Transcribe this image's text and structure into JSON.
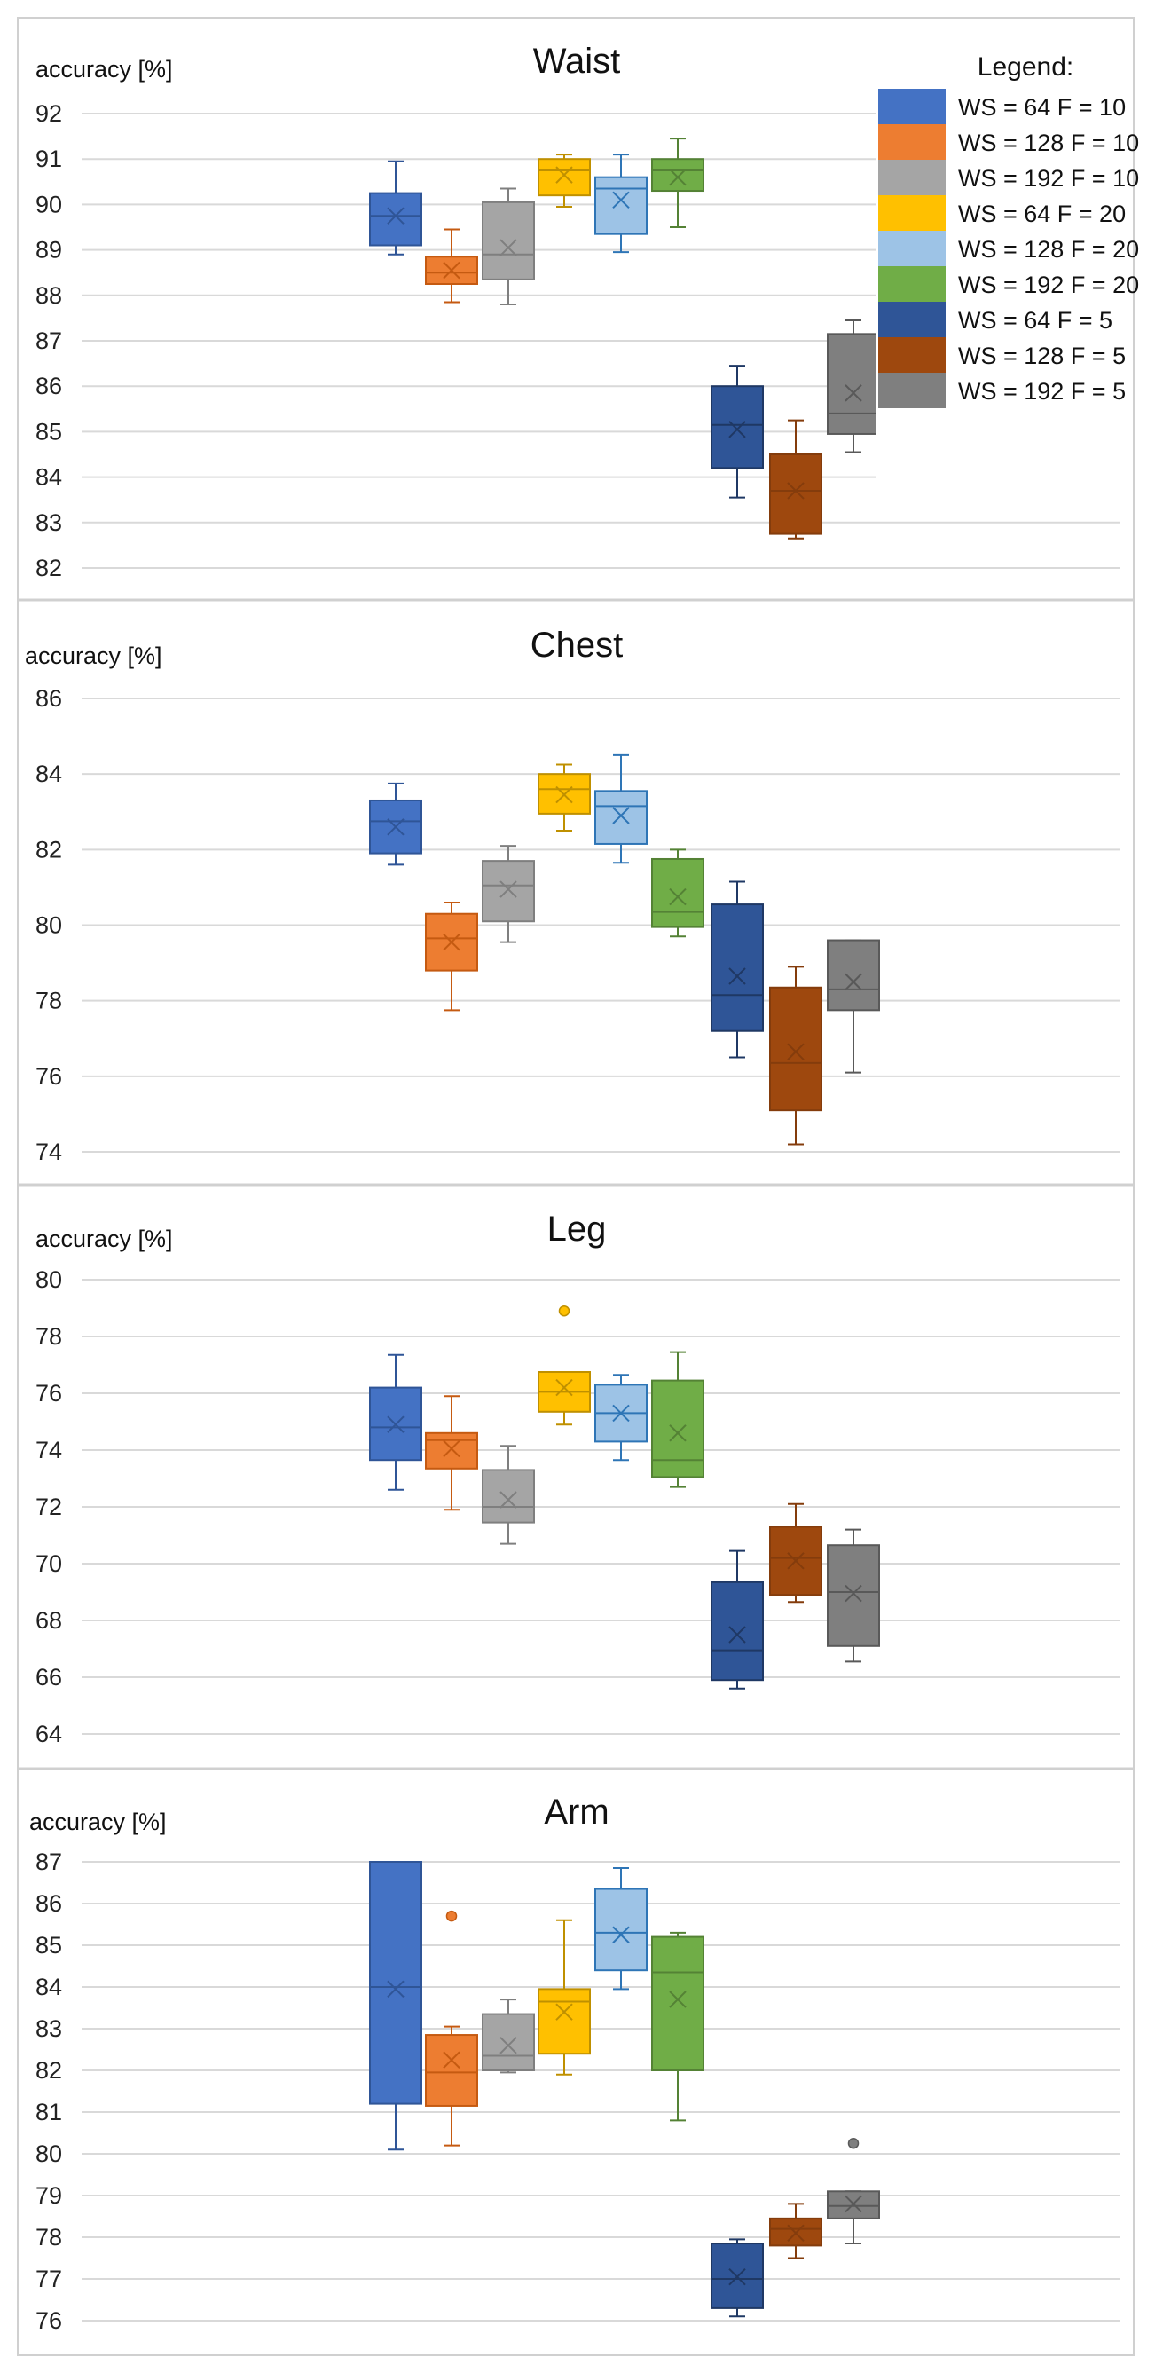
{
  "legend": {
    "title": "Legend:",
    "entries": [
      {
        "label": "WS = 64 F = 10",
        "fill": "#4472C4",
        "stroke": "#2F5597"
      },
      {
        "label": "WS = 128 F = 10",
        "fill": "#ED7D31",
        "stroke": "#C55A11"
      },
      {
        "label": "WS = 192 F = 10",
        "fill": "#A5A5A5",
        "stroke": "#7F7F7F"
      },
      {
        "label": "WS = 64 F = 20",
        "fill": "#FFC000",
        "stroke": "#BF9000"
      },
      {
        "label": "WS = 128 F = 20",
        "fill": "#9DC3E6",
        "stroke": "#2E75B6"
      },
      {
        "label": "WS = 192 F = 20",
        "fill": "#70AD47",
        "stroke": "#548235"
      },
      {
        "label": "WS = 64 F = 5",
        "fill": "#2F5597",
        "stroke": "#1F3864"
      },
      {
        "label": "WS = 128 F = 5",
        "fill": "#9E480E",
        "stroke": "#843C0C"
      },
      {
        "label": "WS = 192 F = 5",
        "fill": "#7F7F7F",
        "stroke": "#595959"
      }
    ]
  },
  "chart_data": [
    {
      "type": "box",
      "title": "Waist",
      "ylabel": "accuracy [%]",
      "ylim": [
        82,
        92
      ],
      "yticks": [
        "82",
        "83",
        "84",
        "85",
        "86",
        "87",
        "88",
        "89",
        "90",
        "91",
        "92"
      ],
      "series": [
        {
          "name": "WS = 64 F = 10",
          "min": 88.9,
          "q1": 89.1,
          "median": 89.75,
          "q3": 90.25,
          "max": 90.95,
          "mean": 89.75,
          "outliers": []
        },
        {
          "name": "WS = 128 F = 10",
          "min": 87.85,
          "q1": 88.25,
          "median": 88.5,
          "q3": 88.85,
          "max": 89.45,
          "mean": 88.55,
          "outliers": []
        },
        {
          "name": "WS = 192 F = 10",
          "min": 87.8,
          "q1": 88.35,
          "median": 88.9,
          "q3": 90.05,
          "max": 90.35,
          "mean": 89.05,
          "outliers": []
        },
        {
          "name": "WS = 64 F = 20",
          "min": 89.95,
          "q1": 90.2,
          "median": 90.75,
          "q3": 91.0,
          "max": 91.1,
          "mean": 90.65,
          "outliers": []
        },
        {
          "name": "WS = 128 F = 20",
          "min": 88.95,
          "q1": 89.35,
          "median": 90.35,
          "q3": 90.6,
          "max": 91.1,
          "mean": 90.1,
          "outliers": []
        },
        {
          "name": "WS = 192 F = 20",
          "min": 89.5,
          "q1": 90.3,
          "median": 90.75,
          "q3": 91.0,
          "max": 91.45,
          "mean": 90.6,
          "outliers": []
        },
        {
          "name": "WS = 64 F = 5",
          "min": 83.55,
          "q1": 84.2,
          "median": 85.15,
          "q3": 86.0,
          "max": 86.45,
          "mean": 85.05,
          "outliers": []
        },
        {
          "name": "WS = 128 F = 5",
          "min": 82.65,
          "q1": 82.75,
          "median": 83.7,
          "q3": 84.5,
          "max": 85.25,
          "mean": 83.7,
          "outliers": []
        },
        {
          "name": "WS = 192 F = 5",
          "min": 84.55,
          "q1": 84.95,
          "median": 85.4,
          "q3": 87.15,
          "max": 87.45,
          "mean": 85.85,
          "outliers": []
        }
      ]
    },
    {
      "type": "box",
      "title": "Chest",
      "ylabel": "accuracy [%]",
      "ylim": [
        74,
        86
      ],
      "yticks": [
        "74",
        "76",
        "78",
        "80",
        "82",
        "84",
        "86"
      ],
      "series": [
        {
          "name": "WS = 64 F = 10",
          "min": 81.6,
          "q1": 81.9,
          "median": 82.75,
          "q3": 83.3,
          "max": 83.75,
          "mean": 82.6,
          "outliers": []
        },
        {
          "name": "WS = 128 F = 10",
          "min": 77.75,
          "q1": 78.8,
          "median": 79.65,
          "q3": 80.3,
          "max": 80.6,
          "mean": 79.55,
          "outliers": []
        },
        {
          "name": "WS = 192 F = 10",
          "min": 79.55,
          "q1": 80.1,
          "median": 81.05,
          "q3": 81.7,
          "max": 82.1,
          "mean": 80.95,
          "outliers": []
        },
        {
          "name": "WS = 64 F = 20",
          "min": 82.5,
          "q1": 82.95,
          "median": 83.6,
          "q3": 84.0,
          "max": 84.25,
          "mean": 83.45,
          "outliers": []
        },
        {
          "name": "WS = 128 F = 20",
          "min": 81.65,
          "q1": 82.15,
          "median": 83.15,
          "q3": 83.55,
          "max": 84.5,
          "mean": 82.9,
          "outliers": []
        },
        {
          "name": "WS = 192 F = 20",
          "min": 79.7,
          "q1": 79.95,
          "median": 80.35,
          "q3": 81.75,
          "max": 82.0,
          "mean": 80.75,
          "outliers": []
        },
        {
          "name": "WS = 64 F = 5",
          "min": 76.5,
          "q1": 77.2,
          "median": 78.15,
          "q3": 80.55,
          "max": 81.15,
          "mean": 78.65,
          "outliers": []
        },
        {
          "name": "WS = 128 F = 5",
          "min": 74.2,
          "q1": 75.1,
          "median": 76.35,
          "q3": 78.35,
          "max": 78.9,
          "mean": 76.65,
          "outliers": []
        },
        {
          "name": "WS = 192 F = 5",
          "min": 76.1,
          "q1": 77.75,
          "median": 78.3,
          "q3": 79.6,
          "max": 79.6,
          "mean": 78.5,
          "outliers": []
        }
      ]
    },
    {
      "type": "box",
      "title": "Leg",
      "ylabel": "accuracy [%]",
      "ylim": [
        64,
        80
      ],
      "yticks": [
        "64",
        "66",
        "68",
        "70",
        "72",
        "74",
        "76",
        "78",
        "80"
      ],
      "series": [
        {
          "name": "WS = 64 F = 10",
          "min": 72.6,
          "q1": 73.65,
          "median": 74.8,
          "q3": 76.2,
          "max": 77.35,
          "mean": 74.9,
          "outliers": []
        },
        {
          "name": "WS = 128 F = 10",
          "min": 71.9,
          "q1": 73.35,
          "median": 74.35,
          "q3": 74.6,
          "max": 75.9,
          "mean": 74.05,
          "outliers": []
        },
        {
          "name": "WS = 192 F = 10",
          "min": 70.7,
          "q1": 71.45,
          "median": 72.0,
          "q3": 73.3,
          "max": 74.15,
          "mean": 72.25,
          "outliers": []
        },
        {
          "name": "WS = 64 F = 20",
          "min": 74.9,
          "q1": 75.35,
          "median": 76.05,
          "q3": 76.75,
          "max": 76.75,
          "mean": 76.2,
          "outliers": [
            78.9
          ]
        },
        {
          "name": "WS = 128 F = 20",
          "min": 73.65,
          "q1": 74.3,
          "median": 75.3,
          "q3": 76.3,
          "max": 76.65,
          "mean": 75.3,
          "outliers": []
        },
        {
          "name": "WS = 192 F = 20",
          "min": 72.7,
          "q1": 73.05,
          "median": 73.65,
          "q3": 76.45,
          "max": 77.45,
          "mean": 74.6,
          "outliers": []
        },
        {
          "name": "WS = 64 F = 5",
          "min": 65.6,
          "q1": 65.9,
          "median": 66.95,
          "q3": 69.35,
          "max": 70.45,
          "mean": 67.5,
          "outliers": []
        },
        {
          "name": "WS = 128 F = 5",
          "min": 68.65,
          "q1": 68.9,
          "median": 70.2,
          "q3": 71.3,
          "max": 72.1,
          "mean": 70.1,
          "outliers": []
        },
        {
          "name": "WS = 192 F = 5",
          "min": 66.55,
          "q1": 67.1,
          "median": 69.0,
          "q3": 70.65,
          "max": 71.2,
          "mean": 68.95,
          "outliers": []
        }
      ]
    },
    {
      "type": "box",
      "title": "Arm",
      "ylabel": "accuracy [%]",
      "ylim": [
        76,
        87
      ],
      "yticks": [
        "76",
        "77",
        "78",
        "79",
        "80",
        "81",
        "82",
        "83",
        "84",
        "85",
        "86",
        "87"
      ],
      "series": [
        {
          "name": "WS = 64 F = 10",
          "min": 80.1,
          "q1": 81.2,
          "median": 84.0,
          "q3": 87.0,
          "max": 87.0,
          "mean": 83.95,
          "outliers": []
        },
        {
          "name": "WS = 128 F = 10",
          "min": 80.2,
          "q1": 81.15,
          "median": 81.95,
          "q3": 82.85,
          "max": 83.05,
          "mean": 82.25,
          "outliers": [
            85.7
          ]
        },
        {
          "name": "WS = 192 F = 10",
          "min": 81.95,
          "q1": 82.0,
          "median": 82.35,
          "q3": 83.35,
          "max": 83.7,
          "mean": 82.6,
          "outliers": []
        },
        {
          "name": "WS = 64 F = 20",
          "min": 81.9,
          "q1": 82.4,
          "median": 83.65,
          "q3": 83.95,
          "max": 85.6,
          "mean": 83.4,
          "outliers": []
        },
        {
          "name": "WS = 128 F = 20",
          "min": 83.95,
          "q1": 84.4,
          "median": 85.3,
          "q3": 86.35,
          "max": 86.85,
          "mean": 85.25,
          "outliers": []
        },
        {
          "name": "WS = 192 F = 20",
          "min": 80.8,
          "q1": 82.0,
          "median": 84.35,
          "q3": 85.2,
          "max": 85.3,
          "mean": 83.7,
          "outliers": []
        },
        {
          "name": "WS = 64 F = 5",
          "min": 76.1,
          "q1": 76.3,
          "median": 77.0,
          "q3": 77.85,
          "max": 77.95,
          "mean": 77.05,
          "outliers": []
        },
        {
          "name": "WS = 128 F = 5",
          "min": 77.5,
          "q1": 77.8,
          "median": 78.2,
          "q3": 78.45,
          "max": 78.8,
          "mean": 78.1,
          "outliers": []
        },
        {
          "name": "WS = 192 F = 5",
          "min": 77.85,
          "q1": 78.45,
          "median": 78.75,
          "q3": 79.1,
          "max": 79.1,
          "mean": 78.8,
          "outliers": [
            80.25
          ]
        }
      ]
    }
  ]
}
